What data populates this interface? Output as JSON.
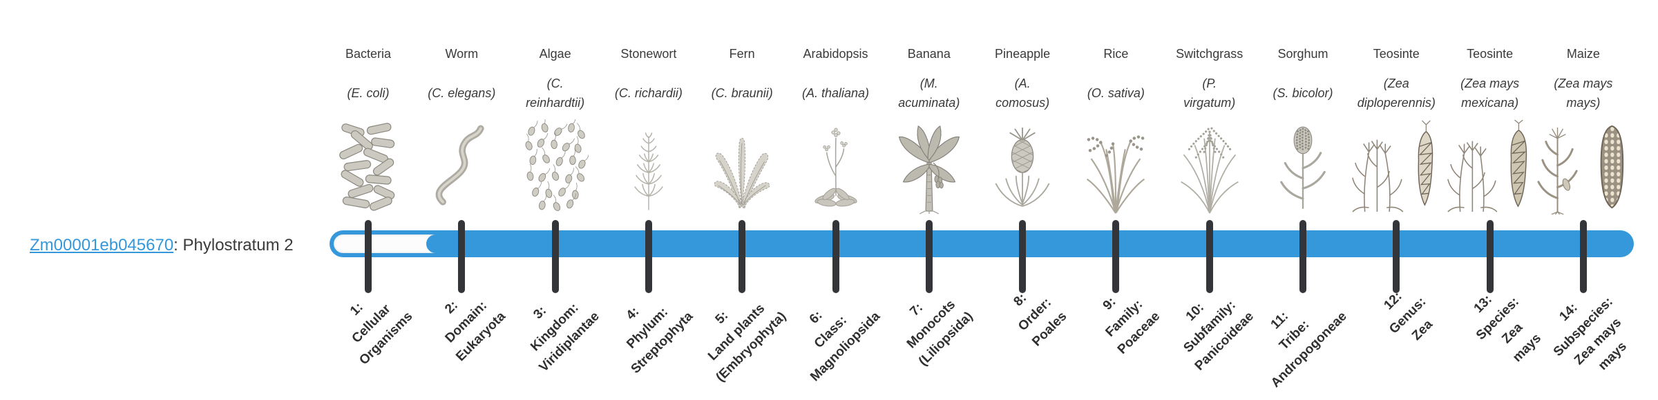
{
  "page": {
    "background": "#ffffff"
  },
  "colors": {
    "bar_blue": "#3498db",
    "tick_dark": "#333538",
    "text_dark": "#3a3a3a",
    "link_blue": "#3498db"
  },
  "gene": {
    "id": "Zm00001eb045670",
    "phylostratum_text": ": Phylostratum 2"
  },
  "timeline": {
    "filled_from_stratum": 2,
    "strata": [
      {
        "organism": {
          "name": "Bacteria",
          "species_lines": [
            "(E. coli)"
          ],
          "icon": "bacteria-illustration"
        },
        "rank_lines": [
          "1:",
          "Cellular",
          "Organisms"
        ]
      },
      {
        "organism": {
          "name": "Worm",
          "species_lines": [
            "(C. elegans)"
          ],
          "icon": "worm-illustration"
        },
        "rank_lines": [
          "2:",
          "Domain:",
          "Eukaryota"
        ]
      },
      {
        "organism": {
          "name": "Algae",
          "species_lines": [
            "(C.",
            "reinhardtii)"
          ],
          "icon": "algae-illustration"
        },
        "rank_lines": [
          "3:",
          "Kingdom:",
          "Viridiplantae"
        ]
      },
      {
        "organism": {
          "name": "Stonewort",
          "species_lines": [
            "(C. richardii)"
          ],
          "icon": "stonewort-illustration"
        },
        "rank_lines": [
          "4:",
          "Phylum:",
          "Streptophyta"
        ]
      },
      {
        "organism": {
          "name": "Fern",
          "species_lines": [
            "(C. braunii)"
          ],
          "icon": "fern-illustration"
        },
        "rank_lines": [
          "5:",
          "Land plants",
          "(Embryophyta)"
        ]
      },
      {
        "organism": {
          "name": "Arabidopsis",
          "species_lines": [
            "(A. thaliana)"
          ],
          "icon": "arabidopsis-illustration"
        },
        "rank_lines": [
          "6:",
          "Class:",
          "Magnoliopsida"
        ]
      },
      {
        "organism": {
          "name": "Banana",
          "species_lines": [
            "(M.",
            "acuminata)"
          ],
          "icon": "banana-illustration"
        },
        "rank_lines": [
          "7:",
          "Monocots",
          "(Liliopsida)"
        ]
      },
      {
        "organism": {
          "name": "Pineapple",
          "species_lines": [
            "(A.",
            "comosus)"
          ],
          "icon": "pineapple-illustration"
        },
        "rank_lines": [
          "8:",
          "Order:",
          "Poales"
        ]
      },
      {
        "organism": {
          "name": "Rice",
          "species_lines": [
            "(O. sativa)"
          ],
          "icon": "rice-illustration"
        },
        "rank_lines": [
          "9:",
          "Family:",
          "Poaceae"
        ]
      },
      {
        "organism": {
          "name": "Switchgrass",
          "species_lines": [
            "(P.",
            "virgatum)"
          ],
          "icon": "switchgrass-illustration"
        },
        "rank_lines": [
          "10:",
          "Subfamily:",
          "Panicoideae"
        ]
      },
      {
        "organism": {
          "name": "Sorghum",
          "species_lines": [
            "(S. bicolor)"
          ],
          "icon": "sorghum-illustration"
        },
        "rank_lines": [
          "11:",
          "Tribe:",
          "Andropogoneae"
        ]
      },
      {
        "organism": {
          "name": "Teosinte",
          "species_lines": [
            "(Zea",
            "diploperennis)"
          ],
          "icon": "teosinte-illustration"
        },
        "rank_lines": [
          "12:",
          "Genus:",
          "Zea"
        ]
      },
      {
        "organism": {
          "name": "Teosinte",
          "species_lines": [
            "(Zea mays",
            "mexicana)"
          ],
          "icon": "teosinte2-illustration"
        },
        "rank_lines": [
          "13:",
          "Species:",
          "Zea",
          "mays"
        ]
      },
      {
        "organism": {
          "name": "Maize",
          "species_lines": [
            "(Zea mays",
            "mays)"
          ],
          "icon": "maize-illustration"
        },
        "rank_lines": [
          "14:",
          "Subspecies:",
          "Zea mays",
          "mays"
        ]
      }
    ]
  }
}
